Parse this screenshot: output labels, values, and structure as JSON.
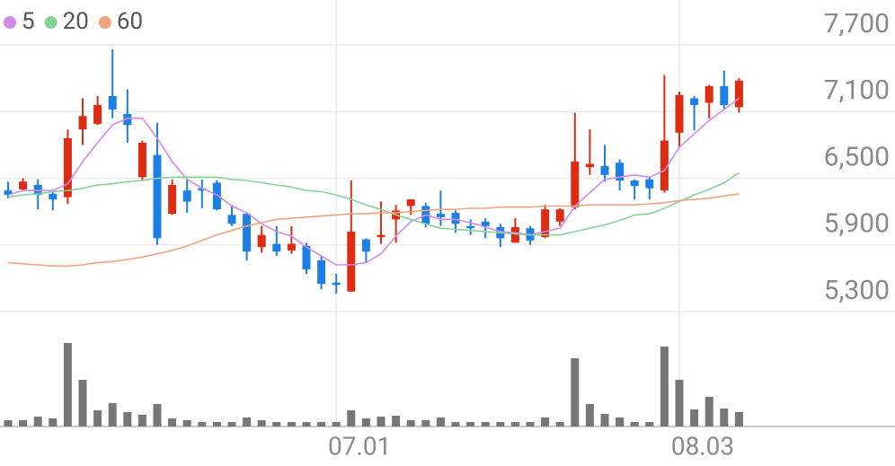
{
  "chart_data": {
    "type": "candlestick",
    "categories": [
      null,
      null,
      null,
      null,
      null,
      null,
      null,
      null,
      null,
      null,
      null,
      null,
      null,
      null,
      null,
      null,
      null,
      null,
      null,
      null,
      null,
      null,
      "07.01",
      null,
      null,
      null,
      null,
      null,
      null,
      null,
      null,
      null,
      null,
      null,
      null,
      null,
      null,
      null,
      null,
      null,
      null,
      null,
      null,
      null,
      null,
      "08.03",
      null,
      null,
      null,
      null
    ],
    "open": [
      6390,
      6400,
      6440,
      6360,
      6330,
      6940,
      6990,
      7240,
      7080,
      6510,
      6710,
      6180,
      6390,
      6410,
      6460,
      6170,
      6180,
      5880,
      5910,
      5850,
      5890,
      5760,
      5560,
      5480,
      5950,
      5970,
      6130,
      6250,
      6250,
      6180,
      6190,
      6070,
      6110,
      6060,
      5920,
      6050,
      5970,
      6110,
      6240,
      6600,
      6610,
      6640,
      6480,
      6490,
      6390,
      6910,
      7220,
      7180,
      7330,
      7140
    ],
    "high": [
      6470,
      6500,
      6490,
      6380,
      6940,
      7220,
      7240,
      7660,
      7300,
      6840,
      7000,
      6490,
      6490,
      6490,
      6480,
      6260,
      6190,
      6070,
      6070,
      6070,
      5920,
      5800,
      5640,
      6480,
      5960,
      6290,
      6260,
      6310,
      6280,
      6390,
      6210,
      6130,
      6140,
      6090,
      6140,
      6070,
      6260,
      6230,
      7090,
      6940,
      6800,
      6670,
      6490,
      6510,
      7430,
      7280,
      7240,
      7340,
      7470,
      7400
    ],
    "low": [
      6320,
      6390,
      6220,
      6210,
      6270,
      6800,
      6980,
      7040,
      6820,
      6480,
      5900,
      6170,
      6190,
      6230,
      6210,
      6070,
      5760,
      5830,
      5800,
      5820,
      5640,
      5500,
      5460,
      5480,
      5740,
      5910,
      5920,
      6170,
      6060,
      6070,
      6010,
      5990,
      5960,
      5880,
      5920,
      5900,
      5960,
      6070,
      6220,
      6530,
      6470,
      6390,
      6310,
      6310,
      6370,
      6780,
      6930,
      7040,
      7120,
      7090
    ],
    "close": [
      6350,
      6470,
      6350,
      6310,
      6860,
      7060,
      7160,
      7120,
      6980,
      6820,
      5960,
      6440,
      6290,
      6390,
      6220,
      6090,
      5840,
      5990,
      5840,
      5910,
      5680,
      5550,
      5540,
      6020,
      5840,
      5990,
      6210,
      6310,
      6090,
      6150,
      6090,
      6050,
      6070,
      5960,
      6060,
      5940,
      6220,
      6220,
      6650,
      6630,
      6530,
      6480,
      6430,
      6410,
      6840,
      7250,
      7160,
      7330,
      7160,
      7380
    ],
    "up_color": "#dd2c12",
    "down_color": "#1c7fe3",
    "series": [
      {
        "name": "5",
        "color": "#d48be8",
        "values": [
          6350,
          6390,
          6390,
          6390,
          6450,
          6650,
          6820,
          6980,
          7040,
          7040,
          6860,
          6650,
          6490,
          6410,
          6350,
          6250,
          6190,
          6090,
          6020,
          5980,
          5880,
          5800,
          5720,
          5720,
          5740,
          5820,
          5980,
          6110,
          6170,
          6130,
          6130,
          6100,
          6060,
          6020,
          6010,
          5990,
          6020,
          6050,
          6250,
          6370,
          6490,
          6510,
          6530,
          6510,
          6570,
          6780,
          6900,
          7020,
          7120,
          7220
        ]
      },
      {
        "name": "20",
        "color": "#86d39a",
        "values": [
          6330,
          6350,
          6360,
          6380,
          6390,
          6410,
          6440,
          6450,
          6470,
          6480,
          6500,
          6510,
          6510,
          6510,
          6510,
          6490,
          6480,
          6460,
          6440,
          6420,
          6390,
          6380,
          6350,
          6310,
          6260,
          6220,
          6170,
          6130,
          6090,
          6050,
          6040,
          6030,
          6020,
          6010,
          6000,
          5990,
          5990,
          5990,
          6020,
          6050,
          6080,
          6120,
          6170,
          6180,
          6230,
          6290,
          6350,
          6400,
          6460,
          6550
        ]
      },
      {
        "name": "60",
        "color": "#f0a47e",
        "values": [
          5740,
          5730,
          5720,
          5710,
          5710,
          5720,
          5740,
          5750,
          5770,
          5790,
          5820,
          5850,
          5890,
          5940,
          5990,
          6030,
          6070,
          6100,
          6130,
          6140,
          6150,
          6160,
          6170,
          6180,
          6180,
          6190,
          6190,
          6200,
          6210,
          6220,
          6220,
          6230,
          6230,
          6240,
          6240,
          6240,
          6250,
          6250,
          6250,
          6260,
          6260,
          6260,
          6260,
          6270,
          6280,
          6300,
          6310,
          6320,
          6340,
          6360
        ]
      }
    ],
    "ylim": [
      5300,
      8105
    ],
    "yticks": [
      {
        "value": 5300,
        "label": "5,300"
      },
      {
        "value": 5900,
        "label": "5,900"
      },
      {
        "value": 6500,
        "label": "6,500"
      },
      {
        "value": 7100,
        "label": "7,100"
      },
      {
        "value": 7700,
        "label": "7,700"
      }
    ],
    "volume": {
      "color": "#777777",
      "vlim": [
        0,
        100
      ],
      "values": [
        7,
        7,
        11,
        9,
        93,
        52,
        18,
        26,
        16,
        13,
        25,
        9,
        7,
        5,
        5,
        5,
        10,
        7,
        5,
        5,
        5,
        5,
        5,
        18,
        9,
        11,
        12,
        7,
        7,
        10,
        5,
        5,
        5,
        5,
        5,
        5,
        10,
        5,
        76,
        25,
        14,
        10,
        5,
        5,
        89,
        52,
        19,
        33,
        20,
        16
      ]
    }
  }
}
